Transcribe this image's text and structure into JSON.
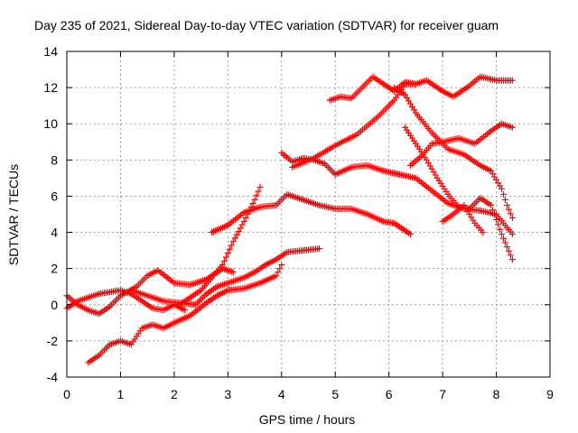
{
  "chart_data": {
    "type": "scatter",
    "title": "Day 235 of 2021, Sidereal Day-to-day VTEC variation (SDTVAR) for receiver guam",
    "xlabel": "GPS time / hours",
    "ylabel": "SDTVAR / TECUs",
    "xlim": [
      0,
      9
    ],
    "ylim": [
      -4,
      14
    ],
    "xticks": [
      "0",
      "1",
      "2",
      "3",
      "4",
      "5",
      "6",
      "7",
      "8",
      "9"
    ],
    "yticks": [
      "-4",
      "-2",
      "0",
      "2",
      "4",
      "6",
      "8",
      "10",
      "12",
      "14"
    ],
    "grid": true,
    "marker": "plus",
    "color": "#ff0000",
    "series": [
      {
        "x": [
          0.0,
          0.2,
          0.4,
          0.6,
          0.8,
          1.0,
          1.3,
          1.5,
          1.7,
          2.0,
          2.3,
          2.6,
          2.9,
          3.1
        ],
        "y": [
          0.5,
          0.0,
          -0.3,
          -0.5,
          -0.1,
          0.5,
          1.0,
          1.6,
          1.9,
          1.2,
          1.1,
          1.4,
          2.0,
          1.8
        ]
      },
      {
        "x": [
          0.0,
          0.2,
          0.4,
          0.6,
          0.8,
          1.0,
          1.2,
          1.4,
          1.6,
          1.8,
          2.0,
          2.2
        ],
        "y": [
          -0.2,
          0.2,
          0.4,
          0.6,
          0.7,
          0.8,
          0.6,
          0.2,
          -0.2,
          -0.3,
          0.0,
          -0.3
        ]
      },
      {
        "x": [
          0.4,
          0.6,
          0.8,
          1.0,
          1.2,
          1.4,
          1.6,
          1.8,
          2.0,
          2.3,
          2.6,
          2.8,
          3.0,
          3.3,
          3.6,
          3.9,
          4.0
        ],
        "y": [
          -3.2,
          -2.8,
          -2.2,
          -2.0,
          -2.2,
          -1.3,
          -1.1,
          -1.3,
          -1.0,
          -0.6,
          0.1,
          0.5,
          0.8,
          0.9,
          1.2,
          1.6,
          2.2
        ]
      },
      {
        "x": [
          1.2,
          1.5,
          1.8,
          2.1,
          2.4,
          2.6,
          2.8,
          3.0,
          3.3,
          3.5,
          3.7,
          3.9,
          4.1,
          4.4,
          4.7
        ],
        "y": [
          0.8,
          0.5,
          0.2,
          0.1,
          0.0,
          0.6,
          1.0,
          1.2,
          1.5,
          1.8,
          2.2,
          2.5,
          2.9,
          3.0,
          3.1
        ]
      },
      {
        "x": [
          2.7,
          3.0,
          3.3,
          3.6,
          3.9,
          4.1,
          4.4,
          4.7,
          5.0,
          5.3,
          5.6,
          5.9,
          6.1,
          6.4
        ],
        "y": [
          4.0,
          4.4,
          5.1,
          5.4,
          5.5,
          6.1,
          5.8,
          5.5,
          5.3,
          5.3,
          5.0,
          4.6,
          4.5,
          3.9
        ]
      },
      {
        "x": [
          2.1,
          2.3,
          2.5,
          2.7,
          2.9,
          3.1,
          3.3,
          3.5,
          3.6
        ],
        "y": [
          0.0,
          0.4,
          0.8,
          1.5,
          2.2,
          3.5,
          4.6,
          5.8,
          6.5
        ]
      },
      {
        "x": [
          4.0,
          4.2,
          4.4,
          4.6,
          4.8,
          5.0,
          5.3,
          5.6,
          5.9,
          6.2,
          6.5,
          6.8,
          7.1,
          7.4,
          7.7,
          8.0,
          8.3
        ],
        "y": [
          8.4,
          7.9,
          8.1,
          8.0,
          7.8,
          7.2,
          7.6,
          7.7,
          7.4,
          7.2,
          7.0,
          6.3,
          5.6,
          5.3,
          5.2,
          5.0,
          3.9
        ]
      },
      {
        "x": [
          4.2,
          4.6,
          5.0,
          5.4,
          5.8,
          6.1,
          6.3,
          6.5
        ],
        "y": [
          7.6,
          8.1,
          8.8,
          9.4,
          10.4,
          11.3,
          12.2,
          12.2
        ]
      },
      {
        "x": [
          4.9,
          5.1,
          5.3,
          5.5,
          5.7,
          5.9,
          6.1,
          6.3,
          6.5,
          6.7,
          7.0,
          7.2,
          7.5,
          7.7,
          8.0,
          8.3
        ],
        "y": [
          11.3,
          11.5,
          11.4,
          12.0,
          12.6,
          12.2,
          11.8,
          12.3,
          12.2,
          12.4,
          11.8,
          11.5,
          12.1,
          12.6,
          12.4,
          12.4
        ]
      },
      {
        "x": [
          6.3,
          6.5,
          6.7,
          6.9,
          7.1,
          7.3,
          7.5,
          7.7,
          7.9,
          8.1,
          8.3
        ],
        "y": [
          9.8,
          8.9,
          8.0,
          7.0,
          6.1,
          5.4,
          5.3,
          5.9,
          5.5,
          3.9,
          2.5
        ]
      },
      {
        "x": [
          6.4,
          6.6,
          6.8,
          7.0,
          7.3,
          7.6,
          7.9,
          8.1,
          8.3
        ],
        "y": [
          7.7,
          8.2,
          8.9,
          9.0,
          9.2,
          8.9,
          9.6,
          10.0,
          9.8
        ]
      },
      {
        "x": [
          6.1,
          6.3,
          6.5,
          6.8,
          7.1,
          7.4,
          7.7,
          7.9,
          8.1,
          8.2,
          8.3
        ],
        "y": [
          12.0,
          11.6,
          10.6,
          9.5,
          8.6,
          8.3,
          7.7,
          7.4,
          6.4,
          5.5,
          4.8
        ]
      },
      {
        "x": [
          7.0,
          7.2,
          7.4,
          7.6,
          7.75
        ],
        "y": [
          4.6,
          5.0,
          5.5,
          4.5,
          4.0
        ]
      }
    ]
  }
}
